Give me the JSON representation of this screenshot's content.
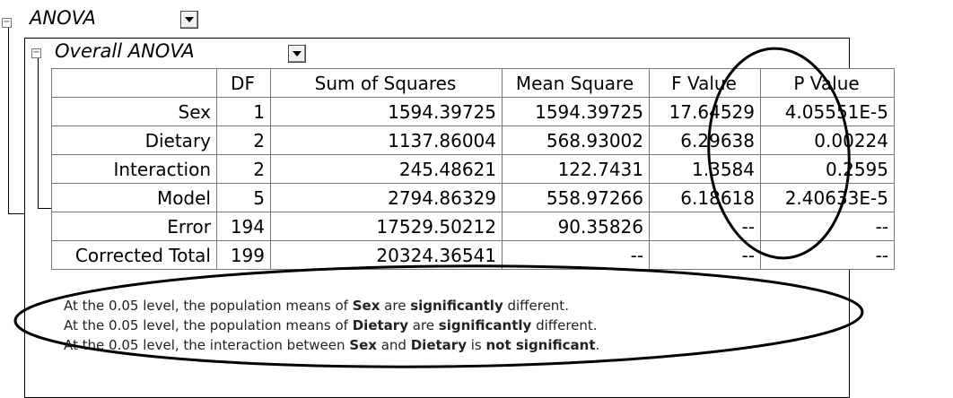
{
  "anova": {
    "title": "ANOVA",
    "expander_symbol": "−",
    "overall": {
      "title": "Overall ANOVA",
      "expander_symbol": "−",
      "columns": [
        "",
        "DF",
        "Sum of Squares",
        "Mean Square",
        "F Value",
        "P Value"
      ],
      "rows": [
        {
          "source": "Sex",
          "df": "1",
          "ss": "1594.39725",
          "ms": "1594.39725",
          "f": "17.64529",
          "p": "4.05551E-5"
        },
        {
          "source": "Dietary",
          "df": "2",
          "ss": "1137.86004",
          "ms": "568.93002",
          "f": "6.29638",
          "p": "0.00224"
        },
        {
          "source": "Interaction",
          "df": "2",
          "ss": "245.48621",
          "ms": "122.7431",
          "f": "1.3584",
          "p": "0.2595"
        },
        {
          "source": "Model",
          "df": "5",
          "ss": "2794.86329",
          "ms": "558.97266",
          "f": "6.18618",
          "p": "2.40633E-5"
        },
        {
          "source": "Error",
          "df": "194",
          "ss": "17529.50212",
          "ms": "90.35826",
          "f": "--",
          "p": "--"
        },
        {
          "source": "Corrected Total",
          "df": "199",
          "ss": "20324.36541",
          "ms": "--",
          "f": "--",
          "p": "--"
        }
      ],
      "notes": [
        {
          "pre": "At the 0.05 level, the population means of ",
          "b1": "Sex",
          "mid": " are ",
          "b2": "significantly",
          "post": " different."
        },
        {
          "pre": "At the 0.05 level, the population means of ",
          "b1": "Dietary",
          "mid": " are ",
          "b2": "significantly",
          "post": " different."
        },
        {
          "pre": "At the 0.05 level, the interaction between ",
          "b1": "Sex",
          "mid": " and ",
          "b2": "Dietary",
          "post": " is ",
          "b3": "not significant",
          "post2": "."
        }
      ]
    }
  }
}
